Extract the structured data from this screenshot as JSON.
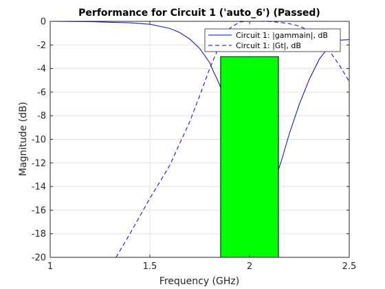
{
  "chart_data": {
    "type": "line",
    "title": "Performance for Circuit 1 ('auto_6')  (Passed)",
    "xlabel": "Frequency (GHz)",
    "ylabel": "Magnitude (dB)",
    "xlim": [
      1,
      2.5
    ],
    "ylim": [
      -20,
      0
    ],
    "xticks": [
      1,
      1.5,
      2,
      2.5
    ],
    "xtick_labels": [
      "1",
      "1.5",
      "2",
      "2.5"
    ],
    "yticks": [
      0,
      -2,
      -4,
      -6,
      -8,
      -10,
      -12,
      -14,
      -16,
      -18,
      -20
    ],
    "ytick_labels": [
      "0",
      "-2",
      "-4",
      "-6",
      "-8",
      "-10",
      "-12",
      "-14",
      "-16",
      "-18",
      "-20"
    ],
    "grid": true,
    "legend_position": "top-right",
    "colors": {
      "series": "#0000cc",
      "spec_region_fill": "#00ff00",
      "grid": "#e0e0e0",
      "axes": "#262626"
    },
    "series": [
      {
        "name": "Circuit 1: |gammain|, dB",
        "style": "solid",
        "x": [
          1.0,
          1.2,
          1.4,
          1.5,
          1.6,
          1.65,
          1.7,
          1.75,
          1.8,
          1.82,
          1.84,
          1.85,
          1.86,
          1.88,
          1.9,
          1.92,
          1.94,
          1.96,
          1.98,
          2.0,
          2.02,
          2.05,
          2.08,
          2.1,
          2.12,
          2.14,
          2.16,
          2.2,
          2.25,
          2.3,
          2.35,
          2.4,
          2.45,
          2.5
        ],
        "y": [
          0.0,
          -0.03,
          -0.12,
          -0.25,
          -0.6,
          -0.95,
          -1.5,
          -2.3,
          -3.5,
          -4.3,
          -5.0,
          -5.4,
          -5.8,
          -6.4,
          -7.0,
          -7.8,
          -8.6,
          -9.5,
          -10.6,
          -12.0,
          -13.6,
          -16.5,
          -17.5,
          -16.3,
          -14.5,
          -12.8,
          -11.8,
          -9.5,
          -7.0,
          -4.9,
          -3.2,
          -2.1,
          -1.6,
          -1.55
        ]
      },
      {
        "name": "Circuit 1: |Gt|, dB",
        "style": "dashed",
        "x": [
          1.33,
          1.4,
          1.5,
          1.6,
          1.7,
          1.75,
          1.8,
          1.85,
          1.9,
          1.95,
          2.0,
          2.05,
          2.1,
          2.15,
          2.2,
          2.25,
          2.3,
          2.35,
          2.4,
          2.45,
          2.5
        ],
        "y": [
          -20.0,
          -18.0,
          -15.0,
          -12.2,
          -8.5,
          -6.3,
          -4.0,
          -2.0,
          -0.6,
          -0.05,
          0.0,
          0.0,
          -0.02,
          -0.08,
          -0.2,
          -0.4,
          -0.8,
          -1.5,
          -2.5,
          -3.7,
          -5.1
        ]
      }
    ],
    "spec_region": {
      "x": [
        1.855,
        2.145
      ],
      "y": [
        -20,
        -3
      ]
    }
  }
}
